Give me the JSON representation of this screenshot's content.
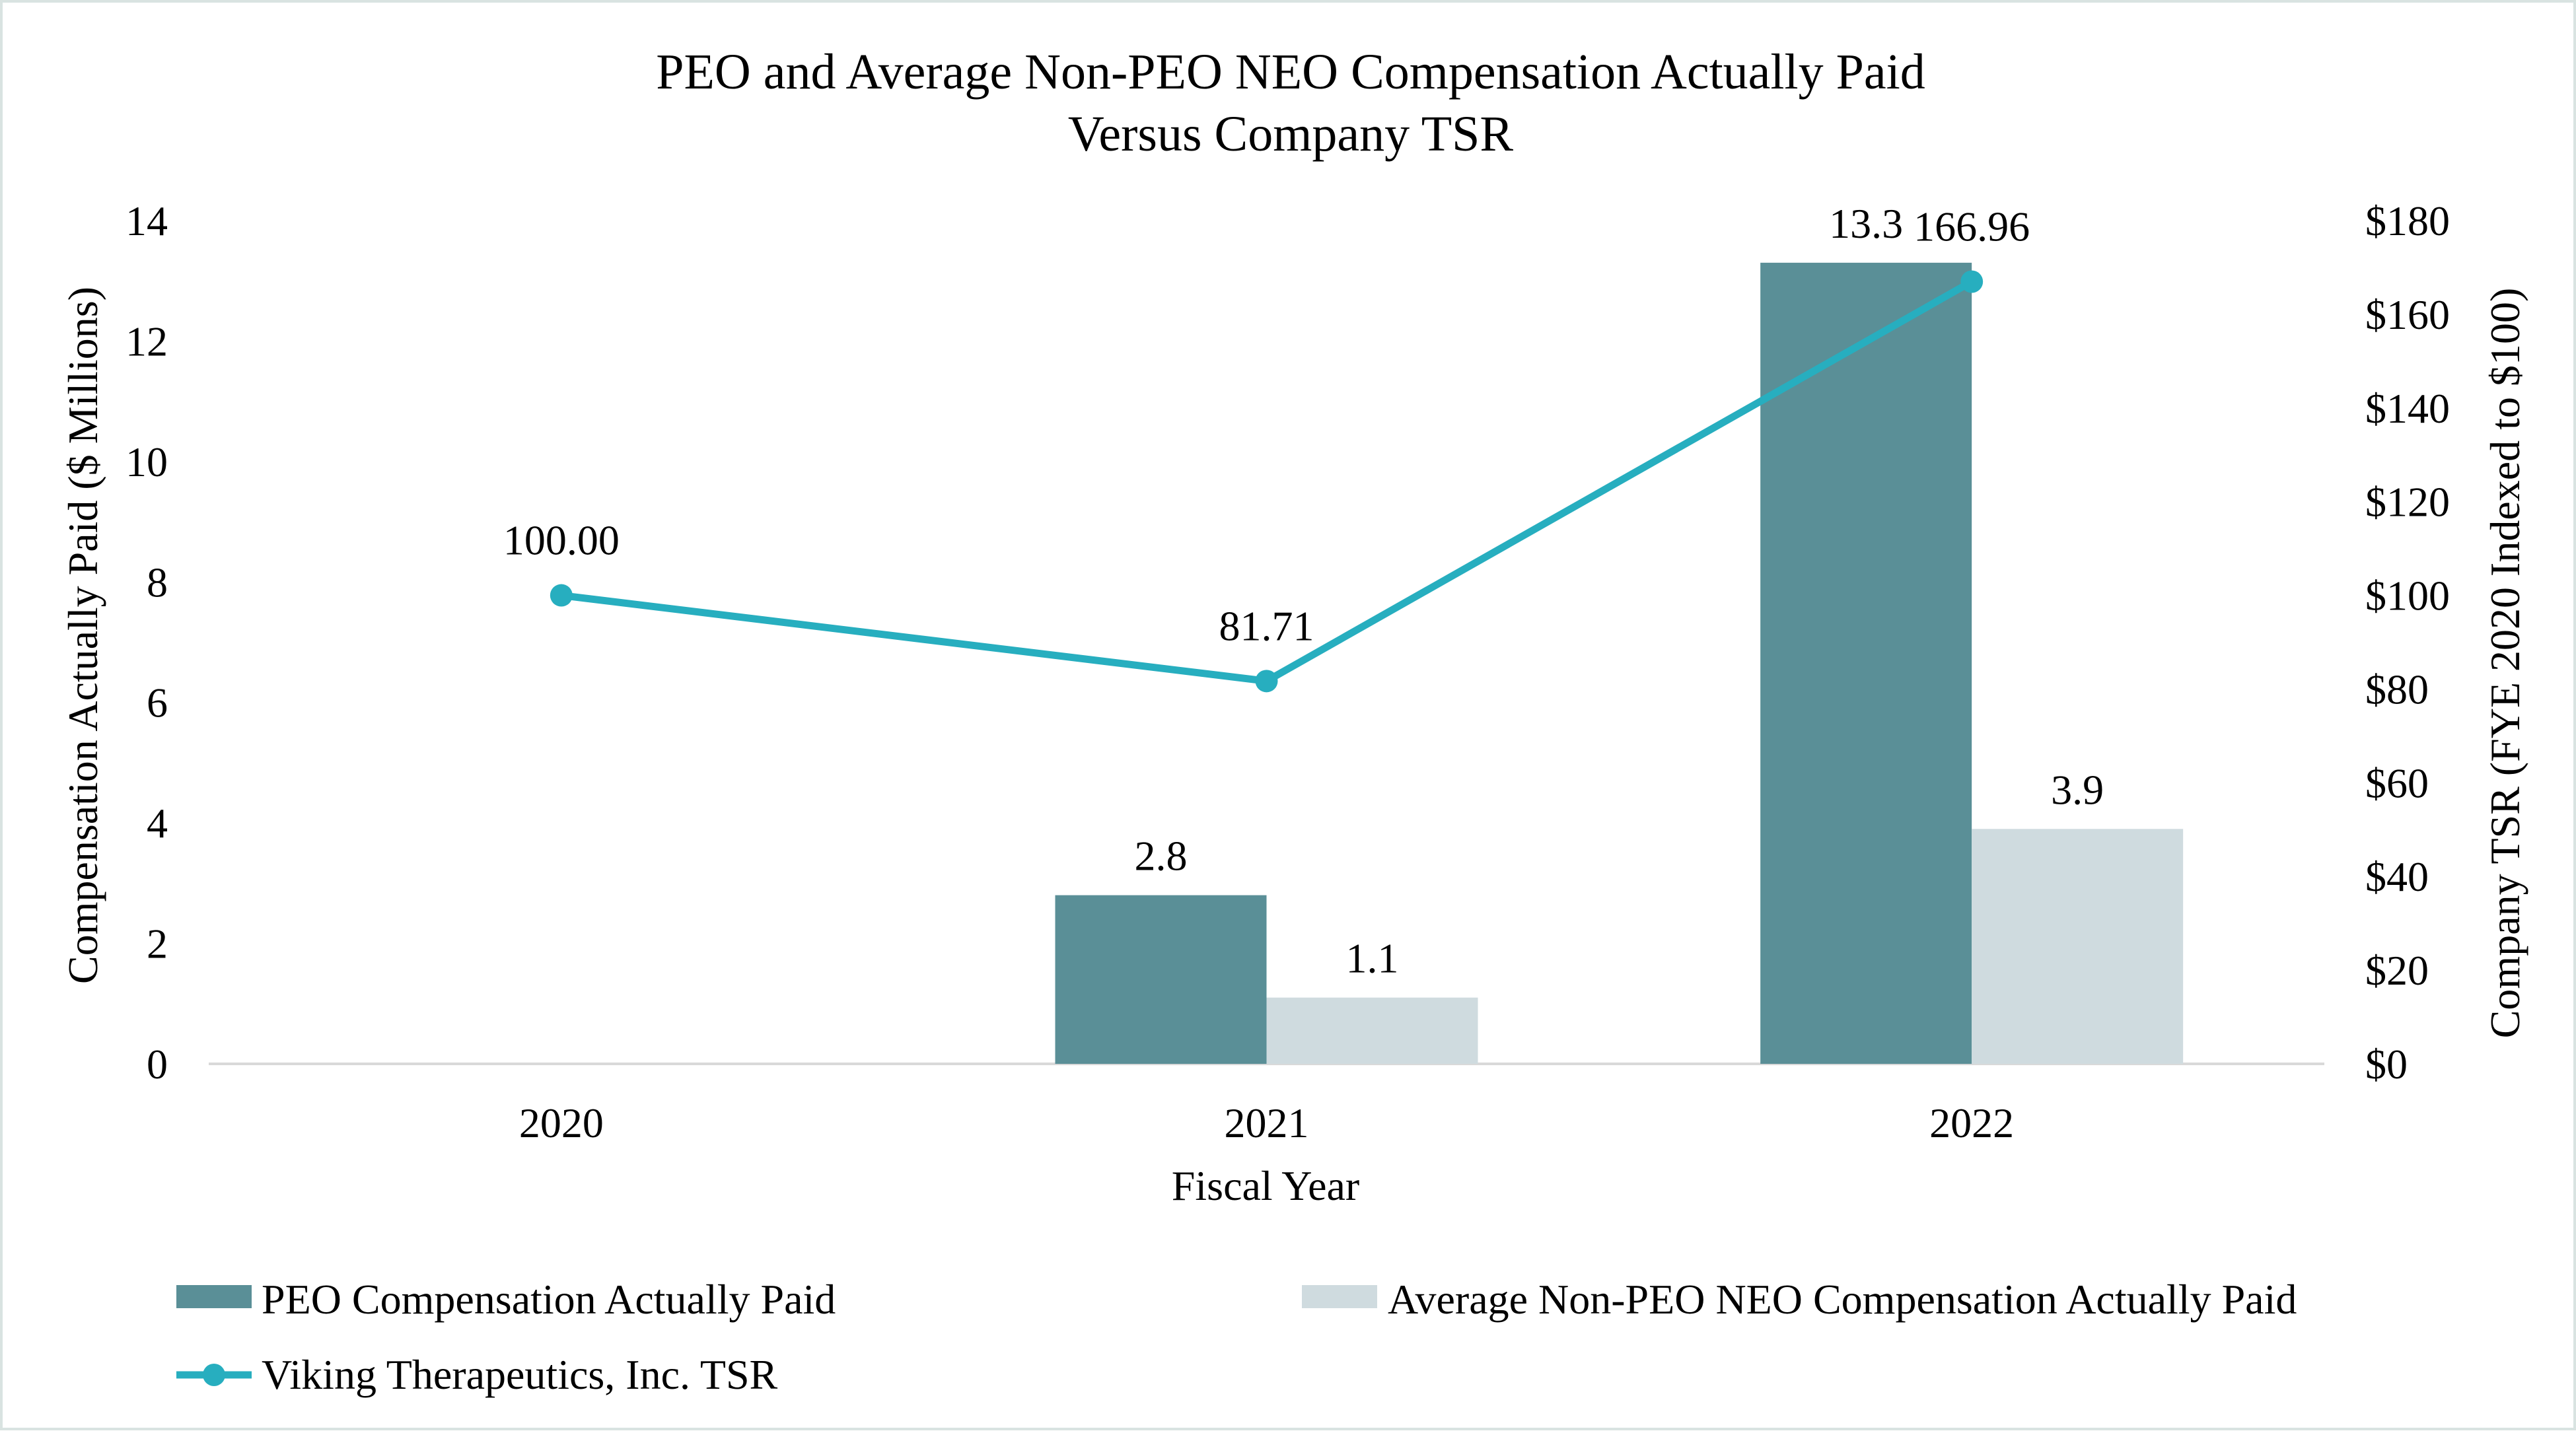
{
  "chart_data": {
    "type": "bar",
    "title": [
      "PEO and Average Non-PEO NEO Compensation Actually Paid",
      "Versus Company TSR"
    ],
    "xlabel": "Fiscal Year",
    "ylabel": "Compensation Actually Paid ($ Millions)",
    "y2label": "Company TSR (FYE 2020 Indexed to $100)",
    "categories": [
      "2020",
      "2021",
      "2022"
    ],
    "ylim": [
      0,
      14
    ],
    "yticks": [
      0,
      2,
      4,
      6,
      8,
      10,
      12,
      14
    ],
    "y2lim": [
      0,
      180
    ],
    "y2ticks": [
      "$0",
      "$20",
      "$40",
      "$60",
      "$80",
      "$100",
      "$120",
      "$140",
      "$160",
      "$180"
    ],
    "series": [
      {
        "name": "PEO Compensation Actually Paid",
        "kind": "bar",
        "axis": "left",
        "color": "#5a8f97",
        "values": [
          null,
          2.8,
          13.3
        ],
        "labels": [
          "",
          "2.8",
          "13.3"
        ]
      },
      {
        "name": "Average Non-PEO NEO Compensation Actually Paid",
        "kind": "bar",
        "axis": "left",
        "color": "#cfdbdf",
        "values": [
          null,
          1.1,
          3.9
        ],
        "labels": [
          "",
          "1.1",
          "3.9"
        ]
      },
      {
        "name": "Viking Therapeutics, Inc. TSR",
        "kind": "line",
        "axis": "right",
        "color": "#27aebf",
        "values": [
          100.0,
          81.71,
          166.96
        ],
        "labels": [
          "100.00",
          "81.71",
          "166.96"
        ]
      }
    ],
    "legend_position": "bottom",
    "grid": false
  }
}
